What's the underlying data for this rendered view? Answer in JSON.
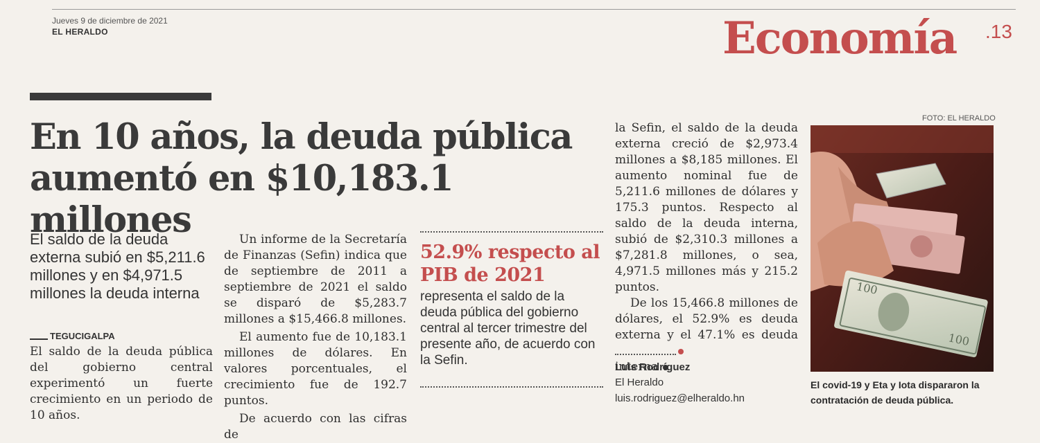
{
  "masthead": {
    "date": "Jueves 9 de diciembre de 2021",
    "paper": "EL HERALDO",
    "section": "Economía",
    "page": ".13"
  },
  "article": {
    "headline": "En 10 años, la deuda pública aumentó en $10,183.1 millones",
    "deck": "El saldo de la deuda externa subió en $5,211.6 millones y en $4,971.5 millones la deuda interna",
    "dateline": "TEGUCIGALPA",
    "col1_p1": "El saldo de la deuda pública del gobierno central experimentó un fuerte crecimiento en un periodo de 10 años.",
    "col2_p1": "Un informe de la Secretaría de Finanzas (Sefin) indica que de septiembre de 2011 a septiembre de 2021 el saldo se disparó de $5,283.7 millones a $15,466.8 millones.",
    "col2_p2": "El aumento fue de 10,183.1 millones de dólares. En valores porcentuales, el crecimiento fue de 192.7 puntos.",
    "col2_p3": "De acuerdo con las cifras de",
    "col3_p1": "la Sefin, el saldo de la deuda externa creció de $2,973.4 millones a $8,185 millones. El aumento nominal fue de 5,211.6 millones de dólares y 175.3 puntos. Respecto al saldo de la deuda interna, subió de $2,310.3 millones a $7,281.8 millones, o sea, 4,971.5 millones más y 215.2 puntos.",
    "col3_p2": "De los 15,466.8 millones de dólares, el 52.9% es deuda externa y el 47.1% es deuda interna"
  },
  "callout": {
    "title": "52.9% respecto al PIB de 2021",
    "body": "representa el saldo de la deuda pública del gobierno central al tercer trimestre del presente año, de acuerdo con la Sefin."
  },
  "byline": {
    "author": "Luis Rodríguez",
    "outlet": "El Heraldo",
    "email": "luis.rodriguez@elheraldo.hn"
  },
  "photo": {
    "credit": "FOTO: EL HERALDO",
    "caption": "El covid-19 y Eta y Iota dispararon la contratación de deuda pública."
  },
  "colors": {
    "accent": "#c44e4e",
    "headline": "#3a3a3a",
    "paper": "#f4f1ec"
  }
}
